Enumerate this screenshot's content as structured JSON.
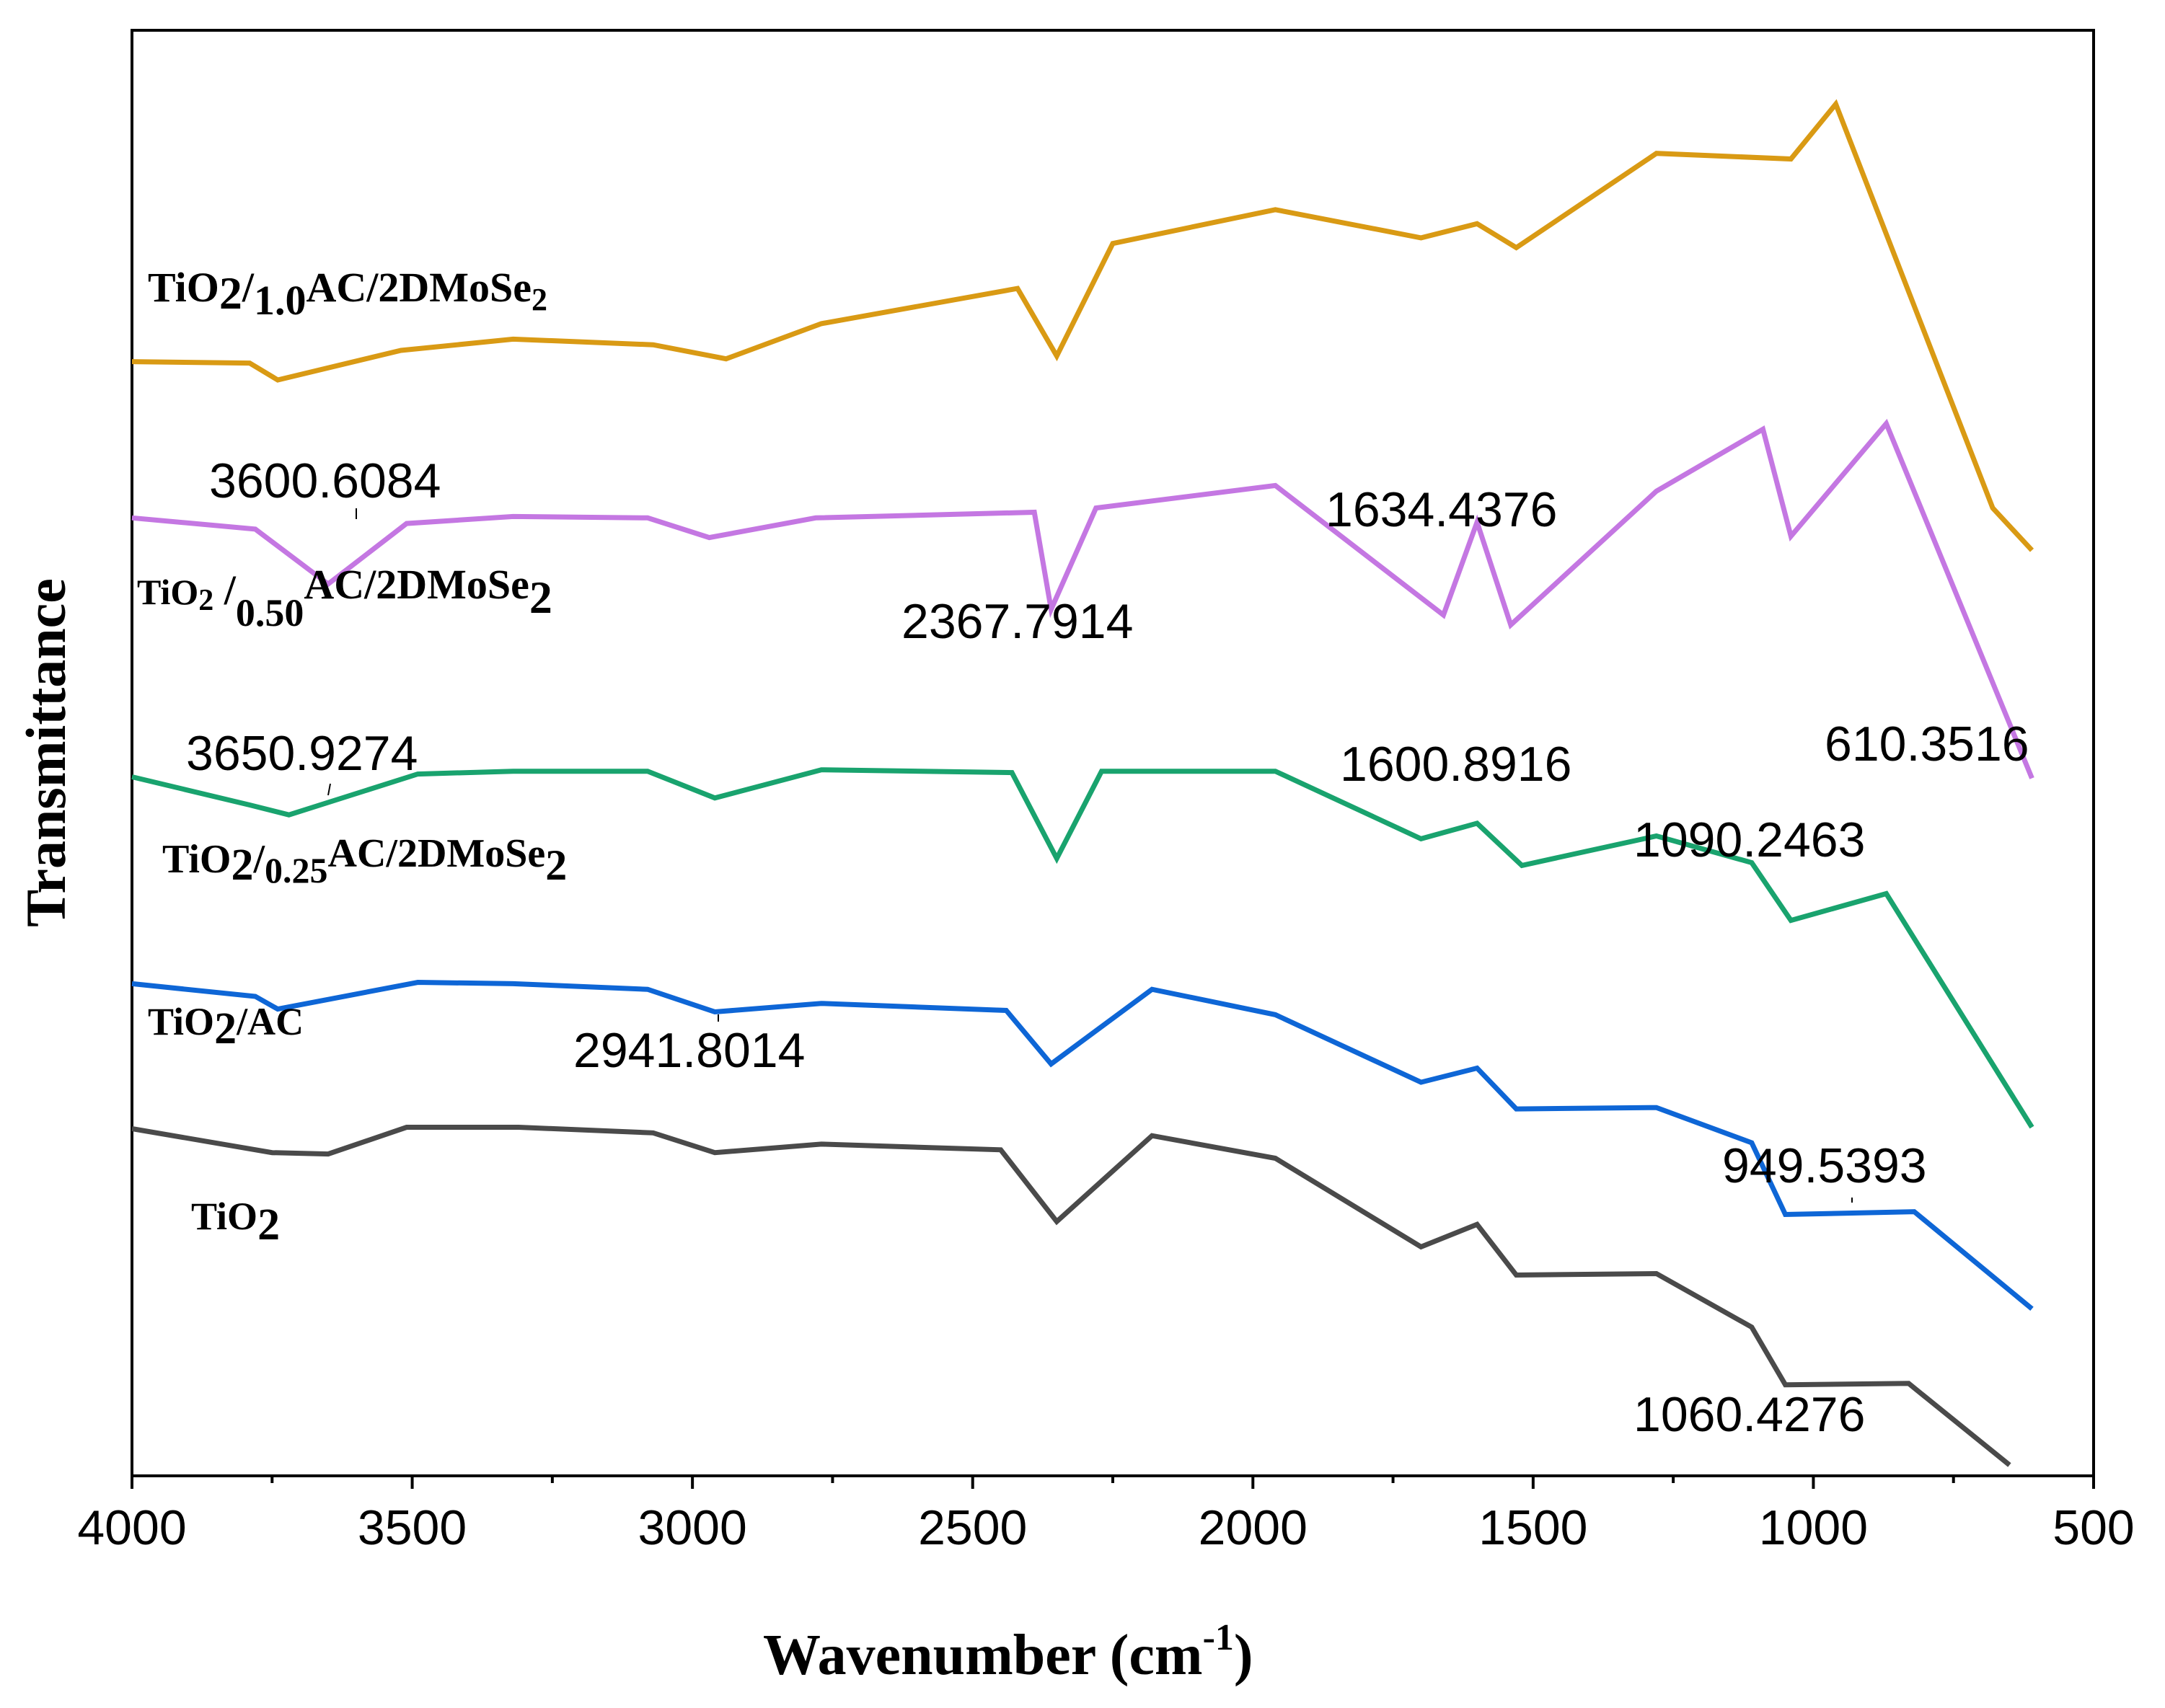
{
  "chart_data": {
    "type": "line",
    "title": "",
    "xlabel": "Wavenumber (cm",
    "xlabel_sup": "-1",
    "xlabel_close": ")",
    "ylabel": "Transmittance",
    "xlim": [
      4000,
      500
    ],
    "x_ticks": [
      4000,
      3500,
      3000,
      2500,
      2000,
      1500,
      1000,
      500
    ],
    "x_tick_labels": [
      "4000",
      "3500",
      "3000",
      "2500",
      "2000",
      "1500",
      "1000",
      "500"
    ],
    "y_units": "stacked offsets, arbitrary transmittance scale 0-100 (no y ticks shown)",
    "series": [
      {
        "name": "TiO2/1.0AC/2DMoSe2",
        "label": {
          "a": "TiO",
          "b": "2",
          "c": "/",
          "d": "1.0",
          "e": "AC/2DMoSe",
          "f": "2"
        },
        "color": "#D99A14",
        "points": [
          [
            4000,
            78.4
          ],
          [
            3790,
            78.3
          ],
          [
            3740,
            77.1
          ],
          [
            3520,
            79.2
          ],
          [
            3320,
            80.0
          ],
          [
            3070,
            79.6
          ],
          [
            2940,
            78.6
          ],
          [
            2770,
            81.1
          ],
          [
            2420,
            83.6
          ],
          [
            2350,
            78.8
          ],
          [
            2250,
            86.8
          ],
          [
            1960,
            89.2
          ],
          [
            1700,
            87.2
          ],
          [
            1600,
            88.2
          ],
          [
            1530,
            86.5
          ],
          [
            1280,
            93.2
          ],
          [
            1040,
            92.8
          ],
          [
            960,
            96.7
          ],
          [
            680,
            68.0
          ],
          [
            610,
            65.0
          ]
        ]
      },
      {
        "name": "TiO2/0.50AC/2DMoSe2",
        "label": {
          "a": "TiO",
          "b": "2",
          "c": " /",
          "d": "0.50",
          "e": "AC/2DMoSe",
          "f": "2"
        },
        "color": "#C477E2",
        "points": [
          [
            4000,
            67.3
          ],
          [
            3780,
            66.5
          ],
          [
            3650,
            62.6
          ],
          [
            3510,
            66.9
          ],
          [
            3320,
            67.4
          ],
          [
            3080,
            67.3
          ],
          [
            2970,
            65.9
          ],
          [
            2780,
            67.3
          ],
          [
            2390,
            67.7
          ],
          [
            2360,
            60.8
          ],
          [
            2280,
            68.0
          ],
          [
            1960,
            69.6
          ],
          [
            1660,
            60.4
          ],
          [
            1600,
            67.0
          ],
          [
            1540,
            59.7
          ],
          [
            1280,
            69.2
          ],
          [
            1090,
            73.6
          ],
          [
            1040,
            66.0
          ],
          [
            870,
            74.0
          ],
          [
            610,
            48.8
          ]
        ]
      },
      {
        "name": "TiO2/0.25AC/2DMoSe2",
        "label": {
          "a": "TiO",
          "b": "2",
          "c": "/",
          "d": "0.25",
          "e": "AC/2DMoSe",
          "f": "2"
        },
        "color": "#19A36E",
        "points": [
          [
            4000,
            48.9
          ],
          [
            3790,
            46.9
          ],
          [
            3720,
            46.2
          ],
          [
            3490,
            49.1
          ],
          [
            3320,
            49.3
          ],
          [
            3080,
            49.3
          ],
          [
            2960,
            47.4
          ],
          [
            2770,
            49.4
          ],
          [
            2430,
            49.2
          ],
          [
            2350,
            43.1
          ],
          [
            2270,
            49.3
          ],
          [
            1960,
            49.3
          ],
          [
            1700,
            44.5
          ],
          [
            1600,
            45.6
          ],
          [
            1520,
            42.6
          ],
          [
            1280,
            44.7
          ],
          [
            1110,
            42.8
          ],
          [
            1040,
            38.7
          ],
          [
            870,
            40.6
          ],
          [
            610,
            24.0
          ]
        ]
      },
      {
        "name": "TiO2/AC",
        "label": {
          "a": "TiO",
          "b": "2",
          "c": "/AC",
          "d": "",
          "e": "",
          "f": ""
        },
        "color": "#0E66D6",
        "points": [
          [
            4000,
            34.2
          ],
          [
            3780,
            33.3
          ],
          [
            3740,
            32.4
          ],
          [
            3490,
            34.3
          ],
          [
            3320,
            34.2
          ],
          [
            3080,
            33.8
          ],
          [
            2960,
            32.2
          ],
          [
            2770,
            32.8
          ],
          [
            2440,
            32.3
          ],
          [
            2360,
            28.5
          ],
          [
            2180,
            33.8
          ],
          [
            1960,
            32.0
          ],
          [
            1700,
            27.2
          ],
          [
            1600,
            28.2
          ],
          [
            1530,
            25.3
          ],
          [
            1280,
            25.4
          ],
          [
            1110,
            22.9
          ],
          [
            1050,
            17.8
          ],
          [
            820,
            18.0
          ],
          [
            610,
            11.1
          ]
        ]
      },
      {
        "name": "TiO2",
        "label": {
          "a": "TiO",
          "b": "2",
          "c": "",
          "d": "",
          "e": "",
          "f": ""
        },
        "color": "#4A4A4A",
        "points": [
          [
            4000,
            23.9
          ],
          [
            3750,
            22.2
          ],
          [
            3650,
            22.1
          ],
          [
            3510,
            24.0
          ],
          [
            3310,
            24.0
          ],
          [
            3070,
            23.6
          ],
          [
            2960,
            22.2
          ],
          [
            2770,
            22.8
          ],
          [
            2450,
            22.4
          ],
          [
            2350,
            17.3
          ],
          [
            2180,
            23.4
          ],
          [
            1960,
            21.8
          ],
          [
            1700,
            15.5
          ],
          [
            1600,
            17.1
          ],
          [
            1530,
            13.5
          ],
          [
            1280,
            13.6
          ],
          [
            1110,
            9.8
          ],
          [
            1050,
            5.7
          ],
          [
            830,
            5.8
          ],
          [
            650,
            0.0
          ]
        ]
      }
    ],
    "annotations": [
      {
        "text": "3600.6084",
        "x": 3600.6084,
        "series": "TiO2/0.50AC/2DMoSe2"
      },
      {
        "text": "2367.7914",
        "x": 2367.7914,
        "series": "TiO2/0.50AC/2DMoSe2"
      },
      {
        "text": "1634.4376",
        "x": 1634.4376,
        "series": "TiO2/0.50AC/2DMoSe2"
      },
      {
        "text": "610.3516",
        "x": 610.3516,
        "series": "TiO2/0.50AC/2DMoSe2"
      },
      {
        "text": "3650.9274",
        "x": 3650.9274,
        "series": "TiO2/0.25AC/2DMoSe2"
      },
      {
        "text": "1600.8916",
        "x": 1600.8916,
        "series": "TiO2/0.25AC/2DMoSe2"
      },
      {
        "text": "1090.2463",
        "x": 1090.2463,
        "series": "TiO2/0.25AC/2DMoSe2"
      },
      {
        "text": "2941.8014",
        "x": 2941.8014,
        "series": "TiO2/AC"
      },
      {
        "text": "949.5393",
        "x": 949.5393,
        "series": "TiO2/AC"
      },
      {
        "text": "1060.4276",
        "x": 1060.4276,
        "series": "TiO2"
      }
    ]
  }
}
